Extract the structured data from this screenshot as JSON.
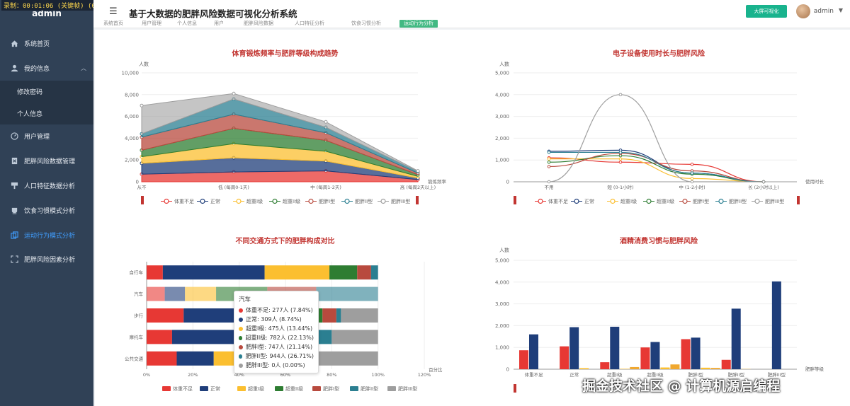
{
  "recorder": "录制：00:01:06 (关键帧) (6.5)",
  "sidebar": {
    "brand": "admin",
    "items": [
      {
        "label": "系统首页",
        "icon": "home-icon"
      },
      {
        "label": "我的信息",
        "icon": "user-icon"
      },
      {
        "label": "修改密码"
      },
      {
        "label": "个人信息"
      },
      {
        "label": "用户管理",
        "icon": "gauge-icon"
      },
      {
        "label": "肥胖风险数据管理",
        "icon": "doc-icon"
      },
      {
        "label": "人口特征数据分析",
        "icon": "brush-icon"
      },
      {
        "label": "饮食习惯模式分析",
        "icon": "cup-icon"
      },
      {
        "label": "运动行为模式分析",
        "icon": "copy-icon"
      },
      {
        "label": "肥胖风险因素分析",
        "icon": "frame-icon"
      }
    ]
  },
  "header": {
    "title": "基于大数据的肥胖风险数据可视化分析系统",
    "big_screen_button": "大屏可视化",
    "username": "admin"
  },
  "tags": [
    "系统首页",
    "用户管理",
    "个人信息",
    "用户",
    "肥胖风险数据",
    "人口特征分析",
    "饮食习惯分析",
    "运动行为分析"
  ],
  "colors": {
    "accent": "#42b983",
    "sidebar_bg": "#304156",
    "series": [
      "#e73834",
      "#1f3e7a",
      "#fbbf30",
      "#2e7d32",
      "#b84a3e",
      "#2b7f91",
      "#9e9e9e"
    ]
  },
  "charts": {
    "c1": {
      "title": "体育锻炼频率与肥胖等级构成趋势",
      "ylabel": "人数",
      "xlabel": "锻炼频率",
      "yticks": [
        "0",
        "2,000",
        "4,000",
        "6,000",
        "8,000",
        "10,000"
      ]
    },
    "c2": {
      "title": "电子设备使用时长与肥胖风险",
      "ylabel": "人数",
      "xlabel": "使用时长",
      "yticks": [
        "0",
        "1,000",
        "2,000",
        "3,000",
        "4,000",
        "5,000"
      ]
    },
    "c3": {
      "title": "不同交通方式下的肥胖构成对比",
      "xlabel": "百分比",
      "xticks": [
        "0%",
        "20%",
        "40%",
        "60%",
        "80%",
        "100%",
        "120%"
      ]
    },
    "c4": {
      "title": "酒精消费习惯与肥胖风险",
      "ylabel": "人数",
      "xlabel": "肥胖等级",
      "yticks": [
        "0",
        "1,000",
        "2,000",
        "3,000",
        "4,000",
        "5,000"
      ]
    }
  },
  "chart_data": [
    {
      "type": "area",
      "title": "体育锻炼频率与肥胖等级构成趋势",
      "categories": [
        "从不",
        "低 (每周0-1天)",
        "中 (每周1-2天)",
        "高 (每周2天以上)"
      ],
      "series": [
        {
          "name": "体重不足",
          "values": [
            700,
            900,
            1000,
            200
          ]
        },
        {
          "name": "正常",
          "values": [
            1000,
            1300,
            900,
            150
          ]
        },
        {
          "name": "超重I级",
          "values": [
            600,
            1300,
            900,
            150
          ]
        },
        {
          "name": "超重II级",
          "values": [
            600,
            1400,
            1000,
            150
          ]
        },
        {
          "name": "肥胖I型",
          "values": [
            1200,
            1300,
            700,
            150
          ]
        },
        {
          "name": "肥胖II型",
          "values": [
            300,
            1400,
            500,
            150
          ]
        },
        {
          "name": "肥胖III型",
          "values": [
            2600,
            500,
            500,
            50
          ]
        }
      ],
      "ylim": [
        0,
        10000
      ]
    },
    {
      "type": "line",
      "title": "电子设备使用时长与肥胖风险",
      "categories": [
        "不用",
        "短 (0-1小时)",
        "中 (1-2小时)",
        "长 (2小时以上)"
      ],
      "series": [
        {
          "name": "体重不足",
          "values": [
            1100,
            900,
            800,
            0
          ]
        },
        {
          "name": "正常",
          "values": [
            1400,
            1450,
            400,
            0
          ]
        },
        {
          "name": "超重I级",
          "values": [
            1050,
            1050,
            150,
            0
          ]
        },
        {
          "name": "超重II级",
          "values": [
            900,
            1200,
            350,
            0
          ]
        },
        {
          "name": "肥胖I型",
          "values": [
            700,
            1300,
            500,
            0
          ]
        },
        {
          "name": "肥胖II型",
          "values": [
            1350,
            1350,
            400,
            0
          ]
        },
        {
          "name": "肥胖III型",
          "values": [
            0,
            4000,
            0,
            0
          ]
        }
      ],
      "ylim": [
        0,
        5000
      ]
    },
    {
      "type": "bar",
      "orientation": "horizontal-stacked-percent",
      "title": "不同交通方式下的肥胖构成对比",
      "categories": [
        "自行车",
        "汽车",
        "步行",
        "摩托车",
        "公共交通"
      ],
      "series": [
        {
          "name": "体重不足",
          "values": [
            7,
            7.84,
            16,
            11,
            13
          ]
        },
        {
          "name": "正常",
          "values": [
            44,
            8.74,
            33,
            30,
            16
          ]
        },
        {
          "name": "超重I级",
          "values": [
            28,
            13.44,
            9,
            10,
            9
          ]
        },
        {
          "name": "超重II级",
          "values": [
            12,
            22.13,
            18,
            10,
            5
          ]
        },
        {
          "name": "肥胖I型",
          "values": [
            6,
            21.14,
            6,
            11,
            4
          ]
        },
        {
          "name": "肥胖II型",
          "values": [
            3,
            26.71,
            2,
            8,
            2
          ]
        },
        {
          "name": "肥胖III型",
          "values": [
            0,
            0,
            16,
            20,
            51
          ]
        }
      ],
      "xlim": [
        0,
        120
      ]
    },
    {
      "type": "bar",
      "title": "酒精消费习惯与肥胖风险",
      "categories": [
        "体重不足",
        "正常",
        "超重I级",
        "超重II级",
        "肥胖I型",
        "肥胖II型",
        "肥胖III型"
      ],
      "series": [
        {
          "values": [
            870,
            1050,
            320,
            1000,
            1380,
            430,
            0
          ]
        },
        {
          "values": [
            1600,
            1930,
            1950,
            1250,
            1450,
            2780,
            4030
          ]
        },
        {
          "values": [
            0,
            50,
            20,
            80,
            70,
            10,
            0
          ]
        },
        {
          "values": [
            0,
            0,
            100,
            220,
            60,
            0,
            0
          ]
        }
      ],
      "ylim": [
        0,
        5000
      ]
    }
  ],
  "tooltip": {
    "title": "汽车",
    "rows": [
      "体重不足: 277人 (7.84%)",
      "正常: 309人 (8.74%)",
      "超重I级: 475人 (13.44%)",
      "超重II级: 782人 (22.13%)",
      "肥胖I型: 747人 (21.14%)",
      "肥胖II型: 944人 (26.71%)",
      "肥胖III型: 0人 (0.00%)"
    ]
  },
  "watermark": "掘金技术社区 @ 计算机源启编程"
}
